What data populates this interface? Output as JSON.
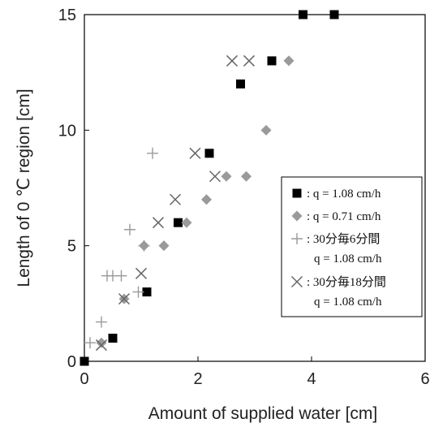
{
  "chart_data": {
    "type": "scatter",
    "title": "",
    "xlabel": "Amount of supplied water [cm]",
    "ylabel": "Length of 0 ℃ region [cm]",
    "xlim": [
      0,
      6
    ],
    "ylim": [
      0,
      15
    ],
    "xticks": [
      "0",
      "2",
      "4",
      "6"
    ],
    "yticks": [
      "0",
      "5",
      "10",
      "15"
    ],
    "grid": false,
    "legend_placement": "center-right",
    "series": [
      {
        "name": ": q = 1.08 cm/h",
        "legend_lines": [
          ": q = 1.08 cm/h"
        ],
        "marker": "square",
        "color": "#000000",
        "points": [
          [
            0.0,
            0.0
          ],
          [
            0.5,
            1.0
          ],
          [
            1.1,
            3.0
          ],
          [
            1.65,
            6.0
          ],
          [
            2.2,
            9.0
          ],
          [
            2.75,
            12.0
          ],
          [
            3.3,
            13.0
          ],
          [
            3.85,
            15.0
          ],
          [
            4.4,
            15.0
          ]
        ]
      },
      {
        "name": ": q = 0.71 cm/h",
        "legend_lines": [
          ": q = 0.71 cm/h"
        ],
        "marker": "diamond",
        "color": "#9a9a9a",
        "points": [
          [
            0.3,
            0.8
          ],
          [
            0.7,
            2.7
          ],
          [
            1.05,
            5.0
          ],
          [
            1.4,
            5.0
          ],
          [
            1.8,
            6.0
          ],
          [
            2.15,
            7.0
          ],
          [
            2.5,
            8.0
          ],
          [
            2.85,
            8.0
          ],
          [
            3.2,
            10.0
          ],
          [
            3.6,
            13.0
          ]
        ]
      },
      {
        "name": ": 30分毎6分間",
        "legend_lines": [
          ": 30分毎6分間",
          "q = 1.08 cm/h"
        ],
        "marker": "plus",
        "color": "#9a9a9a",
        "points": [
          [
            0.1,
            0.8
          ],
          [
            0.3,
            1.7
          ],
          [
            0.4,
            3.7
          ],
          [
            0.5,
            3.7
          ],
          [
            0.65,
            3.7
          ],
          [
            0.8,
            5.7
          ],
          [
            0.95,
            3.0
          ],
          [
            1.05,
            5.0
          ],
          [
            1.2,
            9.0
          ]
        ]
      },
      {
        "name": ": 30分毎18分間",
        "legend_lines": [
          ": 30分毎18分間",
          "q = 1.08 cm/h"
        ],
        "marker": "cross",
        "color": "#666666",
        "points": [
          [
            0.3,
            0.7
          ],
          [
            0.7,
            2.7
          ],
          [
            1.0,
            3.8
          ],
          [
            1.3,
            6.0
          ],
          [
            1.6,
            7.0
          ],
          [
            1.95,
            9.0
          ],
          [
            2.3,
            8.0
          ],
          [
            2.6,
            13.0
          ],
          [
            2.9,
            13.0
          ]
        ]
      }
    ]
  }
}
